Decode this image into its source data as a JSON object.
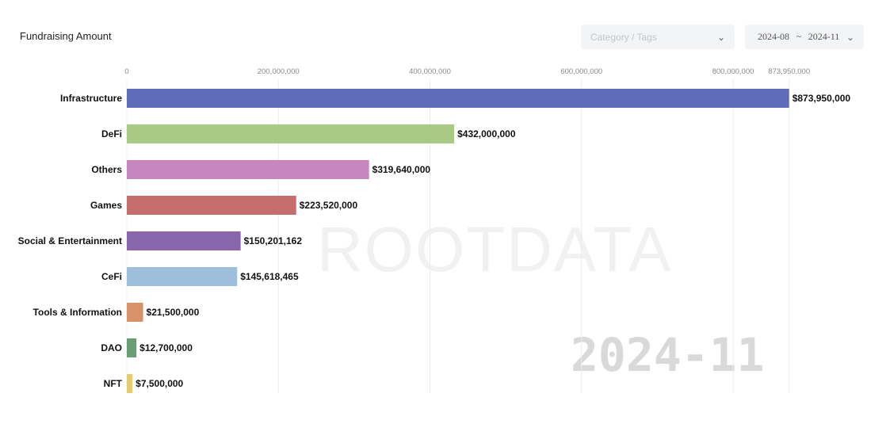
{
  "header": {
    "title": "Fundraising Amount"
  },
  "filters": {
    "category_placeholder": "Category / Tags",
    "date_from": "2024-08",
    "date_sep": "~",
    "date_to": "2024-11"
  },
  "watermark": {
    "brand": "ROOTDATA",
    "period": "2024-11"
  },
  "chart_data": {
    "type": "bar",
    "orientation": "horizontal",
    "title": "Fundraising Amount",
    "categories": [
      "Infrastructure",
      "DeFi",
      "Others",
      "Games",
      "Social & Entertainment",
      "CeFi",
      "Tools & Information",
      "DAO",
      "NFT"
    ],
    "values": [
      873950000,
      432000000,
      319640000,
      223520000,
      150201162,
      145618465,
      21500000,
      12700000,
      7500000
    ],
    "data_labels": [
      "$873,950,000",
      "$432,000,000",
      "$319,640,000",
      "$223,520,000",
      "$150,201,162",
      "$145,618,465",
      "$21,500,000",
      "$12,700,000",
      "$7,500,000"
    ],
    "colors": [
      "#5f6db8",
      "#a8ca85",
      "#c886c0",
      "#c66d6d",
      "#8865ac",
      "#9dbfdc",
      "#d9916a",
      "#679e73",
      "#e1cc72"
    ],
    "x_ticks": [
      0,
      200000000,
      400000000,
      600000000,
      800000000,
      873950000
    ],
    "x_tick_labels": [
      "0",
      "200,000,000",
      "400,000,000",
      "600,000,000",
      "800,000,000",
      "873,950,000"
    ],
    "xlim": [
      0,
      873950000
    ],
    "grid": true,
    "legend": "none",
    "xlabel": "",
    "ylabel": ""
  }
}
